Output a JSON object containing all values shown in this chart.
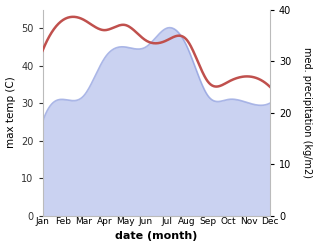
{
  "months": [
    "Jan",
    "Feb",
    "Mar",
    "Apr",
    "May",
    "Jun",
    "Jul",
    "Aug",
    "Sep",
    "Oct",
    "Nov",
    "Dec"
  ],
  "max_temp": [
    25,
    31,
    32,
    42,
    45,
    45,
    50,
    45,
    32,
    31,
    30,
    30
  ],
  "precipitation": [
    32,
    38,
    38,
    36,
    37,
    34,
    34,
    34,
    26,
    26,
    27,
    25
  ],
  "temp_fill_color": "#c5cdf0",
  "temp_line_color": "#8899dd",
  "precip_color": "#c0504d",
  "ylabel_left": "max temp (C)",
  "ylabel_right": "med. precipitation (kg/m2)",
  "xlabel": "date (month)",
  "ylim_left": [
    0,
    55
  ],
  "ylim_right": [
    0,
    40
  ],
  "yticks_left": [
    0,
    10,
    20,
    30,
    40,
    50
  ],
  "yticks_right": [
    0,
    10,
    20,
    30,
    40
  ],
  "background_color": "#ffffff",
  "fig_width": 3.18,
  "fig_height": 2.47,
  "dpi": 100
}
